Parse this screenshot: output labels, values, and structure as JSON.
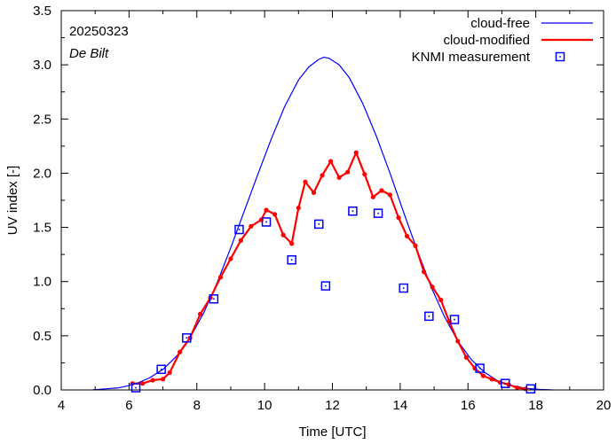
{
  "chart_data": {
    "type": "line",
    "title": "",
    "xlabel": "Time  [UTC]",
    "ylabel": "UV index  [-]",
    "xlim": [
      4,
      20
    ],
    "ylim": [
      0,
      3.5
    ],
    "xticks": [
      4,
      6,
      8,
      10,
      12,
      14,
      16,
      18,
      20
    ],
    "xtick_labels": [
      "4",
      "6",
      "8",
      "10",
      "12",
      "14",
      "16",
      "18",
      "20"
    ],
    "yticks": [
      0,
      0.5,
      1.0,
      1.5,
      2.0,
      2.5,
      3.0,
      3.5
    ],
    "ytick_labels": [
      "0.0",
      "0.5",
      "1.0",
      "1.5",
      "2.0",
      "2.5",
      "3.0",
      "3.5"
    ],
    "grid": false,
    "annotations": [
      {
        "text": "20250323",
        "italic": false
      },
      {
        "text": "De Bilt",
        "italic": true
      }
    ],
    "legend_position": "top-right",
    "series": [
      {
        "name": "cloud-free",
        "style": "line",
        "color": "#0000ff",
        "x": [
          4.9,
          5.3,
          5.7,
          6.0,
          6.3,
          6.6,
          7.0,
          7.4,
          7.8,
          8.2,
          8.6,
          9.0,
          9.4,
          9.8,
          10.2,
          10.6,
          11.0,
          11.3,
          11.6,
          11.75,
          11.9,
          12.2,
          12.5,
          12.9,
          13.3,
          13.7,
          14.1,
          14.5,
          14.9,
          15.3,
          15.7,
          16.1,
          16.5,
          16.9,
          17.3,
          17.7,
          18.1,
          18.5
        ],
        "values": [
          0.0,
          0.01,
          0.02,
          0.04,
          0.07,
          0.11,
          0.19,
          0.31,
          0.48,
          0.71,
          0.99,
          1.31,
          1.65,
          1.99,
          2.32,
          2.62,
          2.86,
          2.98,
          3.05,
          3.07,
          3.06,
          3.0,
          2.88,
          2.64,
          2.34,
          2.0,
          1.64,
          1.29,
          0.96,
          0.68,
          0.45,
          0.28,
          0.16,
          0.08,
          0.04,
          0.015,
          0.005,
          0.0
        ]
      },
      {
        "name": "cloud-modified",
        "style": "line-markers",
        "color": "#ff0000",
        "x": [
          6.1,
          6.4,
          6.7,
          7.0,
          7.2,
          7.5,
          7.8,
          8.1,
          8.4,
          8.7,
          9.0,
          9.3,
          9.6,
          9.9,
          10.05,
          10.3,
          10.55,
          10.8,
          11.0,
          11.2,
          11.45,
          11.7,
          11.95,
          12.2,
          12.45,
          12.7,
          12.95,
          13.2,
          13.45,
          13.7,
          13.95,
          14.2,
          14.45,
          14.7,
          14.95,
          15.2,
          15.45,
          15.7,
          15.95,
          16.2,
          16.45,
          16.7,
          16.95,
          17.2,
          17.45,
          17.7
        ],
        "values": [
          0.06,
          0.06,
          0.09,
          0.1,
          0.16,
          0.35,
          0.48,
          0.7,
          0.85,
          1.04,
          1.21,
          1.38,
          1.51,
          1.57,
          1.66,
          1.62,
          1.43,
          1.35,
          1.68,
          1.92,
          1.82,
          1.98,
          2.11,
          1.96,
          2.01,
          2.19,
          1.99,
          1.78,
          1.84,
          1.8,
          1.59,
          1.42,
          1.33,
          1.09,
          0.95,
          0.83,
          0.63,
          0.45,
          0.3,
          0.2,
          0.13,
          0.1,
          0.07,
          0.05,
          0.02,
          0.01
        ]
      },
      {
        "name": "KNMI measurement",
        "style": "markers",
        "color": "#0000ff",
        "x": [
          6.2,
          6.95,
          7.7,
          8.5,
          9.25,
          10.05,
          10.8,
          11.6,
          11.8,
          12.6,
          13.35,
          14.1,
          14.85,
          15.6,
          16.35,
          17.1,
          17.85
        ],
        "values": [
          0.02,
          0.19,
          0.48,
          0.84,
          1.48,
          1.55,
          1.2,
          1.53,
          0.96,
          1.65,
          1.63,
          0.94,
          0.68,
          0.65,
          0.2,
          0.06,
          0.01
        ]
      }
    ]
  }
}
